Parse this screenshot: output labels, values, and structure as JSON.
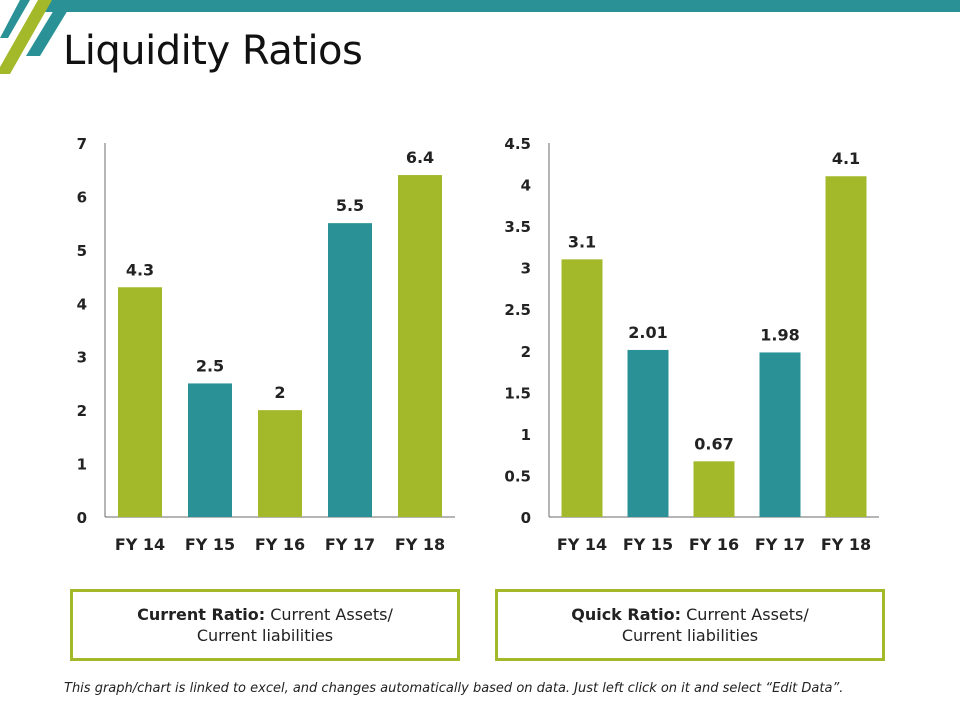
{
  "title": "Liquidity Ratios",
  "colors": {
    "green": "#a3b92a",
    "teal": "#2a9296",
    "topbar": "#2a9296"
  },
  "chart_data": [
    {
      "type": "bar",
      "categories": [
        "FY 14",
        "FY 15",
        "FY 16",
        "FY 17",
        "FY 18"
      ],
      "values": [
        4.3,
        2.5,
        2,
        5.5,
        6.4
      ],
      "value_labels": [
        "4.3",
        "2.5",
        "2",
        "5.5",
        "6.4"
      ],
      "bar_colors": [
        "#a3b92a",
        "#2a9296",
        "#a3b92a",
        "#2a9296",
        "#a3b92a"
      ],
      "ylim": [
        0,
        7
      ],
      "ticks": [
        "0",
        "1",
        "2",
        "3",
        "4",
        "5",
        "6",
        "7"
      ],
      "tick_values": [
        0,
        1,
        2,
        3,
        4,
        5,
        6,
        7
      ],
      "title": "",
      "xlabel": "",
      "ylabel": ""
    },
    {
      "type": "bar",
      "categories": [
        "FY 14",
        "FY 15",
        "FY 16",
        "FY 17",
        "FY 18"
      ],
      "values": [
        3.1,
        2.01,
        0.67,
        1.98,
        4.1
      ],
      "value_labels": [
        "3.1",
        "2.01",
        "0.67",
        "1.98",
        "4.1"
      ],
      "bar_colors": [
        "#a3b92a",
        "#2a9296",
        "#a3b92a",
        "#2a9296",
        "#a3b92a"
      ],
      "ylim": [
        0,
        4.5
      ],
      "ticks": [
        "0",
        "0.5",
        "1",
        "1.5",
        "2",
        "2.5",
        "3",
        "3.5",
        "4",
        "4.5"
      ],
      "tick_values": [
        0,
        0.5,
        1,
        1.5,
        2,
        2.5,
        3,
        3.5,
        4,
        4.5
      ],
      "title": "",
      "xlabel": "",
      "ylabel": ""
    }
  ],
  "definitions": [
    {
      "term": "Current Ratio:",
      "line1": "Current Assets/",
      "line2": "Current liabilities"
    },
    {
      "term": "Quick Ratio:",
      "line1": "Current Assets/",
      "line2": "Current liabilities"
    }
  ],
  "footnote": "This graph/chart is linked to excel, and changes automatically based on data. Just left click on it and select “Edit Data”."
}
